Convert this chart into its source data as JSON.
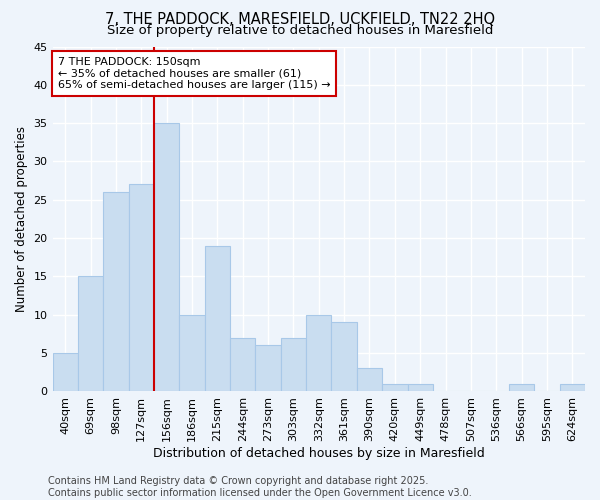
{
  "title": "7, THE PADDOCK, MARESFIELD, UCKFIELD, TN22 2HQ",
  "subtitle": "Size of property relative to detached houses in Maresfield",
  "xlabel": "Distribution of detached houses by size in Maresfield",
  "ylabel": "Number of detached properties",
  "categories": [
    "40sqm",
    "69sqm",
    "98sqm",
    "127sqm",
    "156sqm",
    "186sqm",
    "215sqm",
    "244sqm",
    "273sqm",
    "303sqm",
    "332sqm",
    "361sqm",
    "390sqm",
    "420sqm",
    "449sqm",
    "478sqm",
    "507sqm",
    "536sqm",
    "566sqm",
    "595sqm",
    "624sqm"
  ],
  "values": [
    5,
    15,
    26,
    27,
    35,
    10,
    19,
    7,
    6,
    7,
    10,
    9,
    3,
    1,
    1,
    0,
    0,
    0,
    1,
    0,
    1
  ],
  "bar_color": "#c9ddf0",
  "bar_edge_color": "#a8c8e8",
  "vline_x_index": 4,
  "vline_color": "#cc0000",
  "annotation_text": "7 THE PADDOCK: 150sqm\n← 35% of detached houses are smaller (61)\n65% of semi-detached houses are larger (115) →",
  "annotation_box_color": "#ffffff",
  "annotation_box_edge_color": "#cc0000",
  "ylim": [
    0,
    45
  ],
  "yticks": [
    0,
    5,
    10,
    15,
    20,
    25,
    30,
    35,
    40,
    45
  ],
  "background_color": "#eef4fb",
  "grid_color": "#ffffff",
  "footer_line1": "Contains HM Land Registry data © Crown copyright and database right 2025.",
  "footer_line2": "Contains public sector information licensed under the Open Government Licence v3.0.",
  "title_fontsize": 10.5,
  "subtitle_fontsize": 9.5,
  "xlabel_fontsize": 9,
  "ylabel_fontsize": 8.5,
  "tick_fontsize": 8,
  "annotation_fontsize": 8,
  "footer_fontsize": 7
}
